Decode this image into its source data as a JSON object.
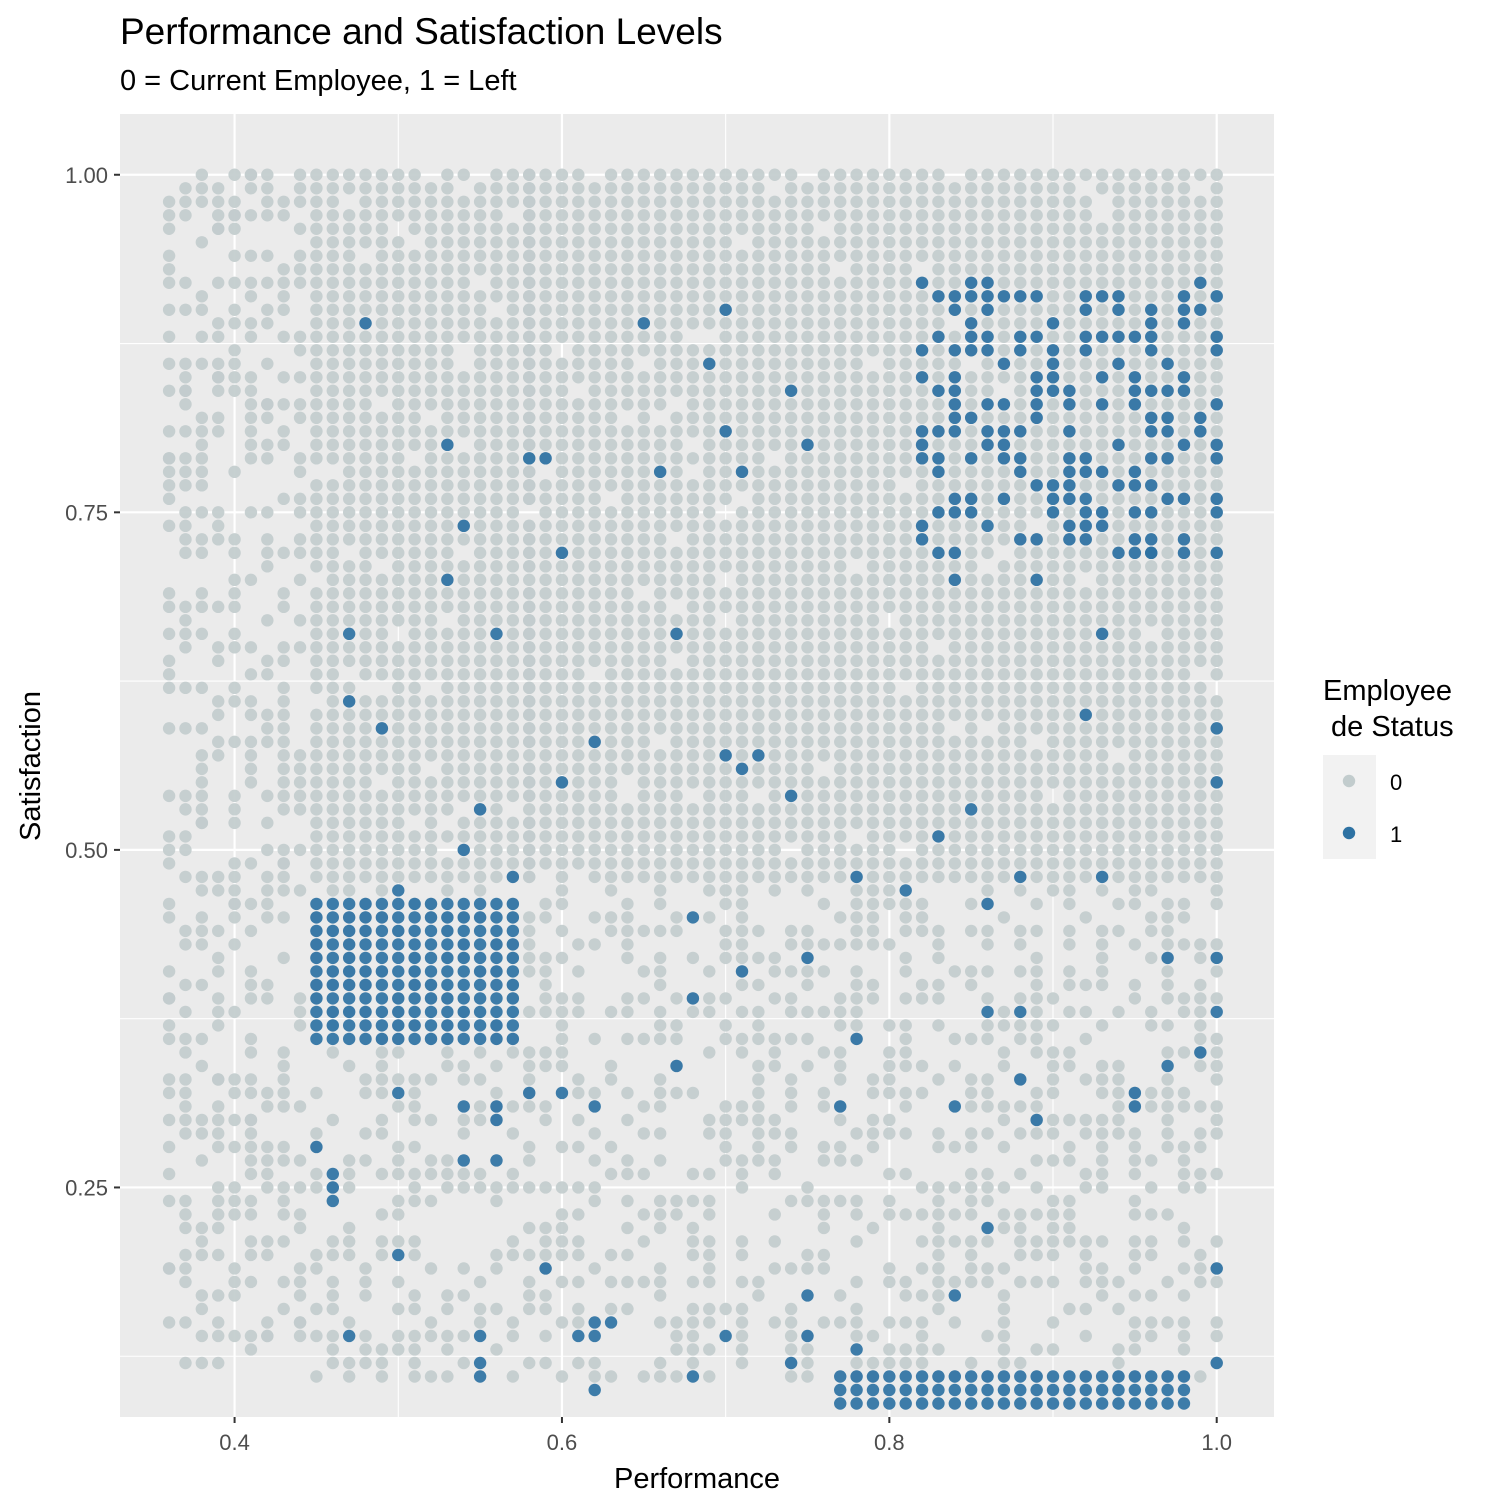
{
  "chart_data": {
    "type": "scatter",
    "title": "Performance and Satisfaction Levels",
    "subtitle": "0 = Current Employee, 1 = Left",
    "xlabel": "Performance",
    "ylabel": "Satisfaction",
    "xlim": [
      0.33,
      1.035
    ],
    "ylim": [
      0.08,
      1.045
    ],
    "x_ticks": [
      0.4,
      0.6,
      0.8,
      1.0
    ],
    "x_tick_labels": [
      "0.4",
      "0.6",
      "0.8",
      "1.0"
    ],
    "y_ticks": [
      0.25,
      0.5,
      0.75,
      1.0
    ],
    "y_tick_labels": [
      "0.25",
      "0.50",
      "0.75",
      "1.00"
    ],
    "grid": true,
    "legend": {
      "title_lines": [
        "Employee",
        " de Status"
      ],
      "placement": "right",
      "entries": [
        {
          "label": "0",
          "color": "#c2cccd"
        },
        {
          "label": "1",
          "color": "#2e72a3"
        }
      ]
    },
    "colors": {
      "panel": "#ebebeb",
      "grid": "#ffffff",
      "current": "#c2cccd",
      "left": "#2e72a3"
    },
    "series": [
      {
        "name": "0",
        "color": "#c2cccd",
        "regions": [
          {
            "x": [
              0.36,
              0.44
            ],
            "y": [
              0.12,
              1.0
            ],
            "density": 0.5
          },
          {
            "x": [
              0.45,
              0.58
            ],
            "y": [
              0.48,
              1.0
            ],
            "density": 0.95
          },
          {
            "x": [
              0.58,
              1.0
            ],
            "y": [
              0.48,
              1.0
            ],
            "density": 0.97
          },
          {
            "x": [
              0.45,
              1.0
            ],
            "y": [
              0.11,
              0.47
            ],
            "density": 0.45
          }
        ],
        "points": [
          [
            0.37,
            0.99
          ],
          [
            0.38,
            0.98
          ],
          [
            0.39,
            0.96
          ],
          [
            0.4,
            0.97
          ],
          [
            0.41,
            1.0
          ],
          [
            0.37,
            0.84
          ],
          [
            0.36,
            0.79
          ],
          [
            0.38,
            0.8
          ],
          [
            0.39,
            0.85
          ],
          [
            0.42,
            0.83
          ],
          [
            0.36,
            0.62
          ],
          [
            0.37,
            0.65
          ],
          [
            0.39,
            0.58
          ],
          [
            0.41,
            0.55
          ],
          [
            0.36,
            0.49
          ],
          [
            0.38,
            0.52
          ],
          [
            0.4,
            0.46
          ],
          [
            0.43,
            0.49
          ],
          [
            0.36,
            0.39
          ],
          [
            0.37,
            0.35
          ],
          [
            0.39,
            0.33
          ],
          [
            0.41,
            0.3
          ],
          [
            0.36,
            0.19
          ],
          [
            0.37,
            0.15
          ],
          [
            0.39,
            0.12
          ],
          [
            0.42,
            0.14
          ],
          [
            0.44,
            0.15
          ]
        ]
      },
      {
        "name": "1",
        "color": "#2e72a3",
        "regions": [
          {
            "x": [
              0.45,
              0.57
            ],
            "y": [
              0.36,
              0.46
            ],
            "density": 1.0
          },
          {
            "x": [
              0.77,
              0.98
            ],
            "y": [
              0.09,
              0.11
            ],
            "density": 1.0
          },
          {
            "x": [
              0.82,
              1.0
            ],
            "y": [
              0.72,
              0.92
            ],
            "density": 0.42
          }
        ],
        "points": [
          [
            0.48,
            0.89
          ],
          [
            0.53,
            0.8
          ],
          [
            0.54,
            0.74
          ],
          [
            0.53,
            0.7
          ],
          [
            0.47,
            0.66
          ],
          [
            0.47,
            0.61
          ],
          [
            0.49,
            0.59
          ],
          [
            0.56,
            0.66
          ],
          [
            0.58,
            0.79
          ],
          [
            0.59,
            0.79
          ],
          [
            0.6,
            0.72
          ],
          [
            0.62,
            0.58
          ],
          [
            0.6,
            0.55
          ],
          [
            0.57,
            0.48
          ],
          [
            0.54,
            0.5
          ],
          [
            0.55,
            0.53
          ],
          [
            0.65,
            0.89
          ],
          [
            0.66,
            0.78
          ],
          [
            0.67,
            0.66
          ],
          [
            0.69,
            0.86
          ],
          [
            0.7,
            0.9
          ],
          [
            0.7,
            0.81
          ],
          [
            0.71,
            0.78
          ],
          [
            0.7,
            0.57
          ],
          [
            0.71,
            0.56
          ],
          [
            0.72,
            0.57
          ],
          [
            0.74,
            0.84
          ],
          [
            0.75,
            0.8
          ],
          [
            0.74,
            0.54
          ],
          [
            0.5,
            0.47
          ],
          [
            0.5,
            0.32
          ],
          [
            0.54,
            0.31
          ],
          [
            0.56,
            0.31
          ],
          [
            0.56,
            0.3
          ],
          [
            0.54,
            0.27
          ],
          [
            0.56,
            0.27
          ],
          [
            0.45,
            0.28
          ],
          [
            0.46,
            0.26
          ],
          [
            0.46,
            0.25
          ],
          [
            0.46,
            0.24
          ],
          [
            0.5,
            0.2
          ],
          [
            0.47,
            0.14
          ],
          [
            0.55,
            0.14
          ],
          [
            0.55,
            0.12
          ],
          [
            0.55,
            0.11
          ],
          [
            0.59,
            0.19
          ],
          [
            0.58,
            0.32
          ],
          [
            0.6,
            0.32
          ],
          [
            0.62,
            0.31
          ],
          [
            0.62,
            0.15
          ],
          [
            0.62,
            0.14
          ],
          [
            0.61,
            0.14
          ],
          [
            0.63,
            0.15
          ],
          [
            0.62,
            0.1
          ],
          [
            0.67,
            0.34
          ],
          [
            0.68,
            0.39
          ],
          [
            0.68,
            0.45
          ],
          [
            0.71,
            0.41
          ],
          [
            0.68,
            0.11
          ],
          [
            0.7,
            0.14
          ],
          [
            0.74,
            0.12
          ],
          [
            0.75,
            0.42
          ],
          [
            0.75,
            0.17
          ],
          [
            0.75,
            0.14
          ],
          [
            0.77,
            0.31
          ],
          [
            0.78,
            0.48
          ],
          [
            0.78,
            0.36
          ],
          [
            0.78,
            0.13
          ],
          [
            0.81,
            0.47
          ],
          [
            0.83,
            0.51
          ],
          [
            0.84,
            0.31
          ],
          [
            0.84,
            0.17
          ],
          [
            0.85,
            0.53
          ],
          [
            0.86,
            0.46
          ],
          [
            0.86,
            0.38
          ],
          [
            0.86,
            0.22
          ],
          [
            0.88,
            0.48
          ],
          [
            0.88,
            0.38
          ],
          [
            0.88,
            0.33
          ],
          [
            0.89,
            0.7
          ],
          [
            0.89,
            0.3
          ],
          [
            0.92,
            0.6
          ],
          [
            0.93,
            0.66
          ],
          [
            0.93,
            0.48
          ],
          [
            0.95,
            0.32
          ],
          [
            0.95,
            0.31
          ],
          [
            0.97,
            0.42
          ],
          [
            0.97,
            0.34
          ],
          [
            0.99,
            0.35
          ],
          [
            1.0,
            0.59
          ],
          [
            1.0,
            0.55
          ],
          [
            1.0,
            0.42
          ],
          [
            1.0,
            0.38
          ],
          [
            1.0,
            0.19
          ],
          [
            1.0,
            0.12
          ],
          [
            0.96,
            0.72
          ],
          [
            0.94,
            0.72
          ],
          [
            0.84,
            0.7
          ]
        ]
      }
    ]
  }
}
